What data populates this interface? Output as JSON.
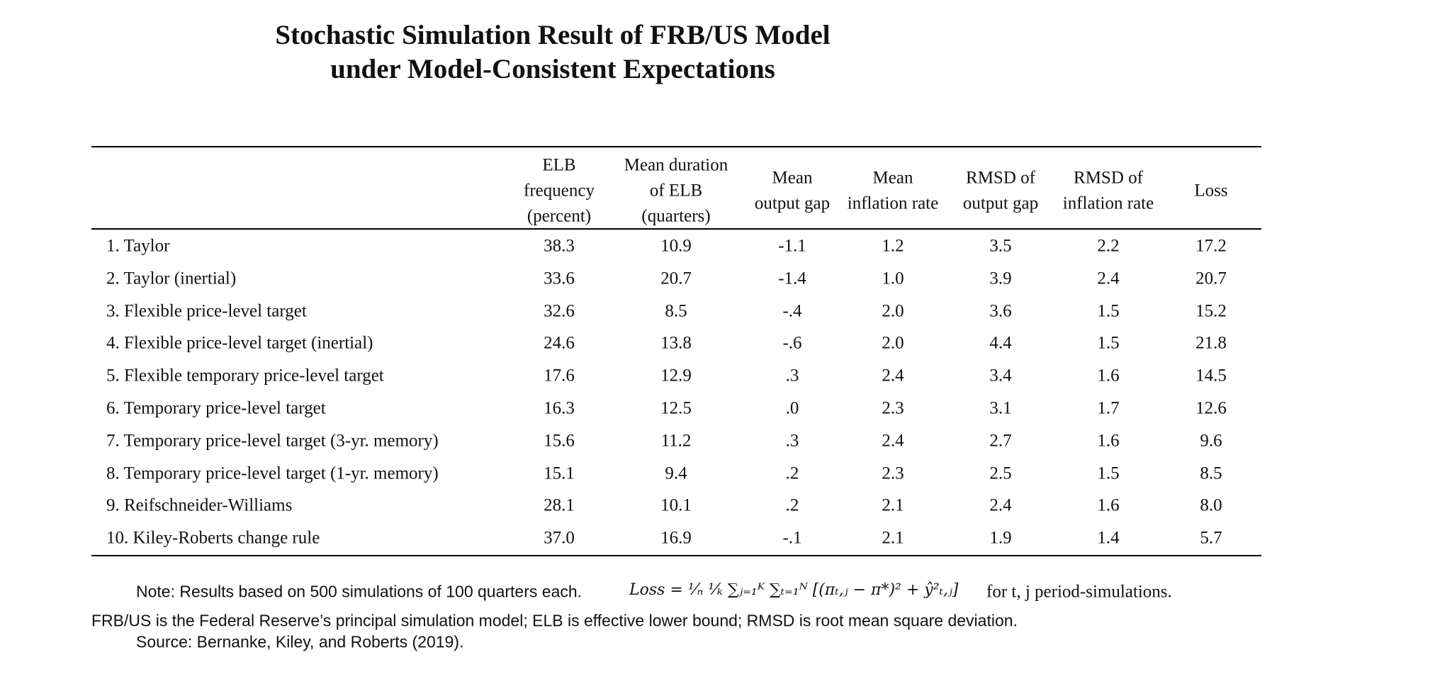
{
  "title": [
    "Stochastic Simulation Result of FRB/US Model",
    "under Model-Consistent Expectations"
  ],
  "table": {
    "headers": [
      [
        "ELB",
        "frequency",
        "(percent)"
      ],
      [
        "Mean duration",
        "of ELB",
        "(quarters)"
      ],
      [
        "Mean",
        "output gap"
      ],
      [
        "Mean",
        "inflation rate"
      ],
      [
        "RMSD of",
        "output gap"
      ],
      [
        "RMSD of",
        "inflation rate"
      ],
      [
        "Loss"
      ]
    ],
    "rows": [
      [
        "1. Taylor",
        "38.3",
        "10.9",
        "-1.1",
        "1.2",
        "3.5",
        "2.2",
        "17.2"
      ],
      [
        "2. Taylor (inertial)",
        "33.6",
        "20.7",
        "-1.4",
        "1.0",
        "3.9",
        "2.4",
        "20.7"
      ],
      [
        "3. Flexible price-level target",
        "32.6",
        "8.5",
        "-.4",
        "2.0",
        "3.6",
        "1.5",
        "15.2"
      ],
      [
        "4. Flexible price-level target (inertial)",
        "24.6",
        "13.8",
        "-.6",
        "2.0",
        "4.4",
        "1.5",
        "21.8"
      ],
      [
        "5. Flexible temporary price-level target",
        "17.6",
        "12.9",
        ".3",
        "2.4",
        "3.4",
        "1.6",
        "14.5"
      ],
      [
        "6. Temporary price-level target",
        "16.3",
        "12.5",
        ".0",
        "2.3",
        "3.1",
        "1.7",
        "12.6"
      ],
      [
        "7. Temporary price-level target (3-yr. memory)",
        "15.6",
        "11.2",
        ".3",
        "2.4",
        "2.7",
        "1.6",
        "9.6"
      ],
      [
        "8. Temporary price-level target (1-yr. memory)",
        "15.1",
        "9.4",
        ".2",
        "2.3",
        "2.5",
        "1.5",
        "8.5"
      ],
      [
        "9. Reifschneider-Williams",
        "28.1",
        "10.1",
        ".2",
        "2.1",
        "2.4",
        "1.6",
        "8.0"
      ],
      [
        "10. Kiley-Roberts change rule",
        "37.0",
        "16.9",
        "-.1",
        "2.1",
        "1.9",
        "1.4",
        "5.7"
      ]
    ]
  },
  "note": {
    "text": "Note:  Results based on 500 simulations of 100 quarters each.",
    "formula": "Loss = ¹⁄ₙ ¹⁄ₖ ∑ⱼ₌₁ᴷ ∑ₜ₌₁ᴺ [(πₜ,ⱼ − π*)² + ŷ²ₜ,ⱼ]",
    "suffix": "for t, j period-simulations.",
    "line2": "FRB/US is the Federal Reserve’s principal simulation model; ELB is effective lower bound; RMSD is root mean square deviation.",
    "source": "Source:  Bernanke, Kiley, and Roberts (2019)."
  }
}
